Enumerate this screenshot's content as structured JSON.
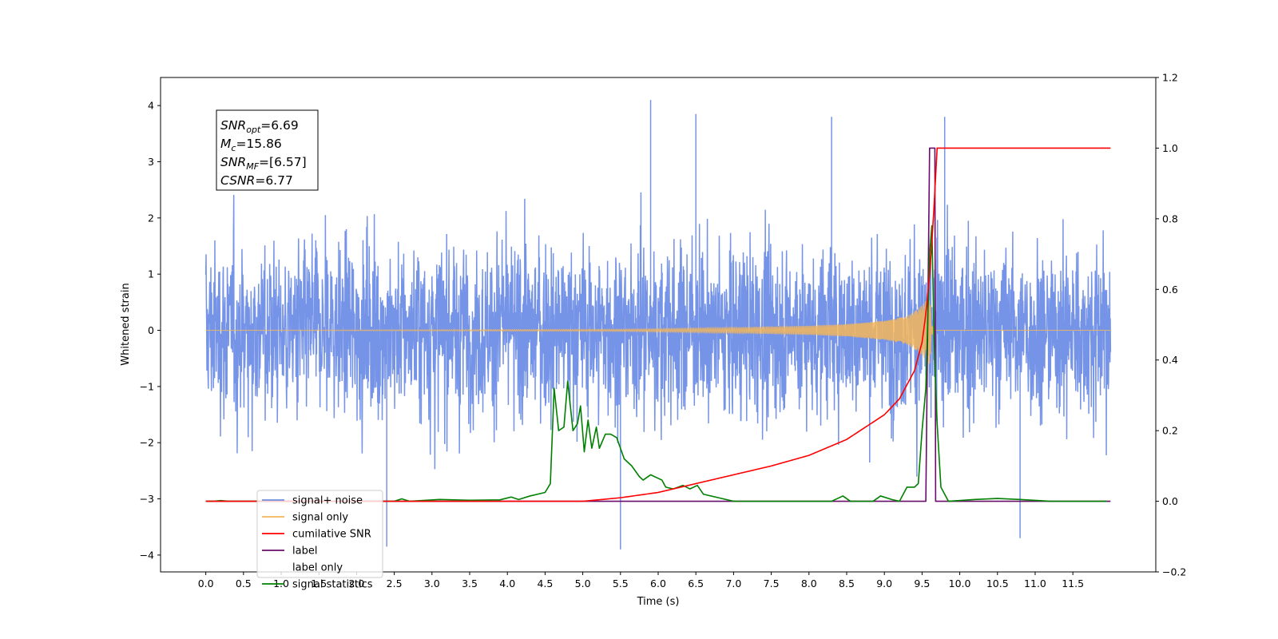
{
  "chart_data": {
    "type": "line",
    "xlabel": "Time (s)",
    "ylabel_left": "Whitened strain",
    "ylabel_right": "",
    "xlim": [
      -0.6,
      12.6
    ],
    "ylim_left": [
      -4.3,
      4.5
    ],
    "ylim_right": [
      -0.2,
      1.2
    ],
    "x_ticks": [
      "0.0",
      "0.5",
      "1.0",
      "1.5",
      "2.0",
      "2.5",
      "3.0",
      "3.5",
      "4.0",
      "4.5",
      "5.0",
      "5.5",
      "6.0",
      "6.5",
      "7.0",
      "7.5",
      "8.0",
      "8.5",
      "9.0",
      "9.5",
      "10.0",
      "10.5",
      "11.0",
      "11.5"
    ],
    "y_ticks_left": [
      "−4",
      "−3",
      "−2",
      "−1",
      "0",
      "1",
      "2",
      "3",
      "4"
    ],
    "y_ticks_right": [
      "−0.2",
      "0.0",
      "0.2",
      "0.4",
      "0.6",
      "0.8",
      "1.0",
      "1.2"
    ],
    "grid": false,
    "legend_placement": "lower-left",
    "series": [
      {
        "name": "signal+ noise",
        "axis": "left",
        "color": "#6f8ee6",
        "description": "noisy whitened strain time series, roughly within ±2.5 with spikes to ±4",
        "t_range": [
          0.0,
          12.0
        ],
        "envelope": [
          -2.6,
          2.6
        ],
        "peak_values": [
          [
            5.9,
            4.1
          ],
          [
            6.5,
            3.85
          ],
          [
            9.8,
            3.8
          ],
          [
            8.3,
            3.8
          ],
          [
            5.5,
            -3.9
          ],
          [
            10.8,
            -3.7
          ],
          [
            2.4,
            -3.85
          ]
        ]
      },
      {
        "name": "signal only",
        "axis": "left",
        "color": "#f5b65a",
        "description": "chirp waveform growing in amplitude until merger",
        "t_range": [
          0.0,
          12.0
        ],
        "amplitude": [
          [
            0.0,
            0.0
          ],
          [
            5.5,
            0.02
          ],
          [
            7.0,
            0.05
          ],
          [
            8.0,
            0.08
          ],
          [
            8.5,
            0.11
          ],
          [
            9.0,
            0.17
          ],
          [
            9.3,
            0.25
          ],
          [
            9.5,
            0.45
          ],
          [
            9.6,
            0.6
          ],
          [
            9.65,
            0.0
          ]
        ]
      },
      {
        "name": "cumilative SNR",
        "axis": "right",
        "color": "#ff0000",
        "points": [
          [
            0.0,
            0.0
          ],
          [
            5.0,
            0.0
          ],
          [
            5.5,
            0.01
          ],
          [
            6.0,
            0.025
          ],
          [
            6.5,
            0.05
          ],
          [
            7.0,
            0.075
          ],
          [
            7.5,
            0.1
          ],
          [
            8.0,
            0.13
          ],
          [
            8.5,
            0.175
          ],
          [
            9.0,
            0.245
          ],
          [
            9.2,
            0.29
          ],
          [
            9.4,
            0.37
          ],
          [
            9.5,
            0.45
          ],
          [
            9.55,
            0.53
          ],
          [
            9.6,
            0.64
          ],
          [
            9.65,
            0.8
          ],
          [
            9.7,
            1.0
          ],
          [
            12.0,
            1.0
          ]
        ]
      },
      {
        "name": "label",
        "axis": "right",
        "color": "#6a0d6a",
        "points": [
          [
            0.0,
            0.0
          ],
          [
            9.55,
            0.0
          ],
          [
            9.6,
            1.0
          ],
          [
            9.67,
            1.0
          ],
          [
            9.68,
            0.0
          ],
          [
            12.0,
            0.0
          ]
        ]
      },
      {
        "name": "label only",
        "axis": "right",
        "color": "#d9d9d9",
        "hidden_behind_legend": true,
        "points": []
      },
      {
        "name": "signal statistics",
        "axis": "right",
        "color": "#008000",
        "points": [
          [
            0.0,
            0.0
          ],
          [
            0.1,
            0.0
          ],
          [
            0.2,
            0.002
          ],
          [
            0.3,
            0.0
          ],
          [
            2.5,
            0.0
          ],
          [
            2.6,
            0.007
          ],
          [
            2.7,
            0.0
          ],
          [
            3.1,
            0.005
          ],
          [
            3.5,
            0.003
          ],
          [
            3.9,
            0.004
          ],
          [
            4.05,
            0.012
          ],
          [
            4.15,
            0.005
          ],
          [
            4.3,
            0.015
          ],
          [
            4.4,
            0.02
          ],
          [
            4.5,
            0.025
          ],
          [
            4.57,
            0.05
          ],
          [
            4.62,
            0.32
          ],
          [
            4.68,
            0.2
          ],
          [
            4.75,
            0.21
          ],
          [
            4.8,
            0.34
          ],
          [
            4.87,
            0.2
          ],
          [
            4.93,
            0.22
          ],
          [
            4.97,
            0.27
          ],
          [
            5.02,
            0.14
          ],
          [
            5.07,
            0.23
          ],
          [
            5.12,
            0.15
          ],
          [
            5.18,
            0.21
          ],
          [
            5.22,
            0.15
          ],
          [
            5.3,
            0.19
          ],
          [
            5.37,
            0.19
          ],
          [
            5.45,
            0.18
          ],
          [
            5.55,
            0.12
          ],
          [
            5.65,
            0.1
          ],
          [
            5.75,
            0.07
          ],
          [
            5.8,
            0.06
          ],
          [
            5.9,
            0.075
          ],
          [
            6.05,
            0.06
          ],
          [
            6.1,
            0.04
          ],
          [
            6.2,
            0.035
          ],
          [
            6.33,
            0.045
          ],
          [
            6.42,
            0.035
          ],
          [
            6.52,
            0.045
          ],
          [
            6.6,
            0.02
          ],
          [
            6.8,
            0.01
          ],
          [
            7.0,
            0.0
          ],
          [
            8.3,
            0.0
          ],
          [
            8.45,
            0.015
          ],
          [
            8.55,
            0.0
          ],
          [
            8.85,
            0.0
          ],
          [
            8.95,
            0.015
          ],
          [
            9.1,
            0.005
          ],
          [
            9.2,
            0.0
          ],
          [
            9.3,
            0.04
          ],
          [
            9.4,
            0.04
          ],
          [
            9.45,
            0.05
          ],
          [
            9.5,
            0.2
          ],
          [
            9.55,
            0.32
          ],
          [
            9.6,
            0.7
          ],
          [
            9.63,
            0.78
          ],
          [
            9.66,
            0.45
          ],
          [
            9.7,
            0.22
          ],
          [
            9.75,
            0.04
          ],
          [
            9.85,
            0.0
          ],
          [
            10.2,
            0.005
          ],
          [
            10.5,
            0.008
          ],
          [
            10.8,
            0.005
          ],
          [
            11.2,
            0.0
          ],
          [
            11.95,
            0.0
          ]
        ]
      }
    ],
    "annotation_box": {
      "lines": [
        {
          "base": "SNR",
          "sub": "opt",
          "value": "=6.69"
        },
        {
          "base": "M",
          "sub": "c",
          "value": "=15.86"
        },
        {
          "base": "SNR",
          "sub": "MF",
          "value": "=[6.57]"
        },
        {
          "base": "CSNR",
          "sub": "",
          "value": "=6.77"
        }
      ]
    }
  }
}
